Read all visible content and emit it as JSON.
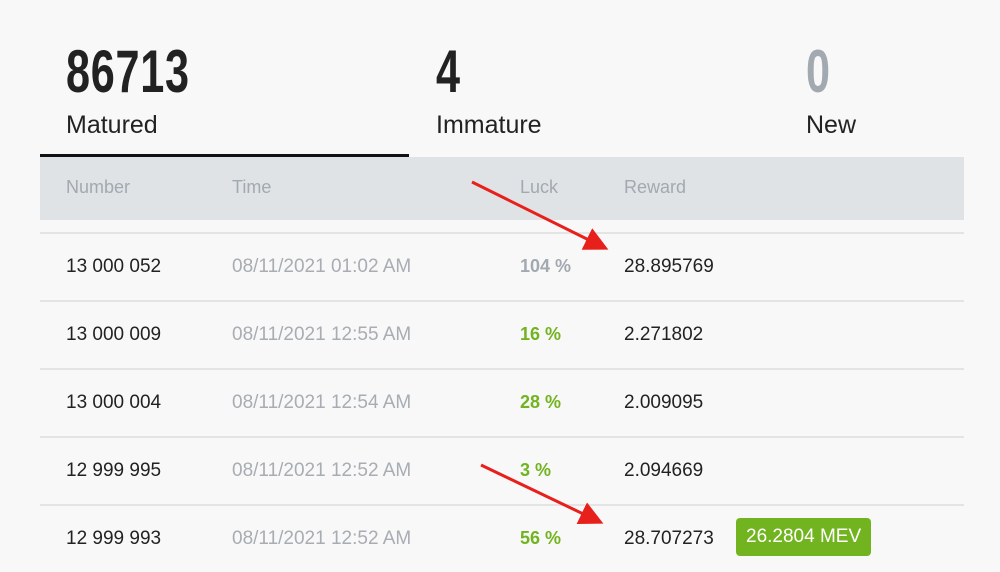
{
  "stats": [
    {
      "value": "86713",
      "label": "Matured",
      "active": true
    },
    {
      "value": "4",
      "label": "Immature"
    },
    {
      "value": "0",
      "label": "New"
    }
  ],
  "table": {
    "headers": [
      "Number",
      "Time",
      "Luck",
      "Reward"
    ],
    "rows": [
      {
        "number": "13 000 052",
        "time": "08/11/2021 01:02 AM",
        "luck": "104 %",
        "reward": "28.895769",
        "luck_color": "#a2a9b0"
      },
      {
        "number": "13 000 009",
        "time": "08/11/2021 12:55 AM",
        "luck": "16 %",
        "reward": "2.271802",
        "luck_color": "#72b41f"
      },
      {
        "number": "13 000 004",
        "time": "08/11/2021 12:54 AM",
        "luck": "28 %",
        "reward": "2.009095",
        "luck_color": "#72b41f"
      },
      {
        "number": "12 999 995",
        "time": "08/11/2021 12:52 AM",
        "luck": "3 %",
        "reward": "2.094669",
        "luck_color": "#72b41f"
      },
      {
        "number": "12 999 993",
        "time": "08/11/2021 12:52 AM",
        "luck": "56 %",
        "reward": "28.707273",
        "luck_color": "#72b41f",
        "badge": "26.2804 MEV"
      }
    ]
  },
  "colors": {
    "accent_green": "#72b41f",
    "annotation_arrow": "#e8201c"
  }
}
